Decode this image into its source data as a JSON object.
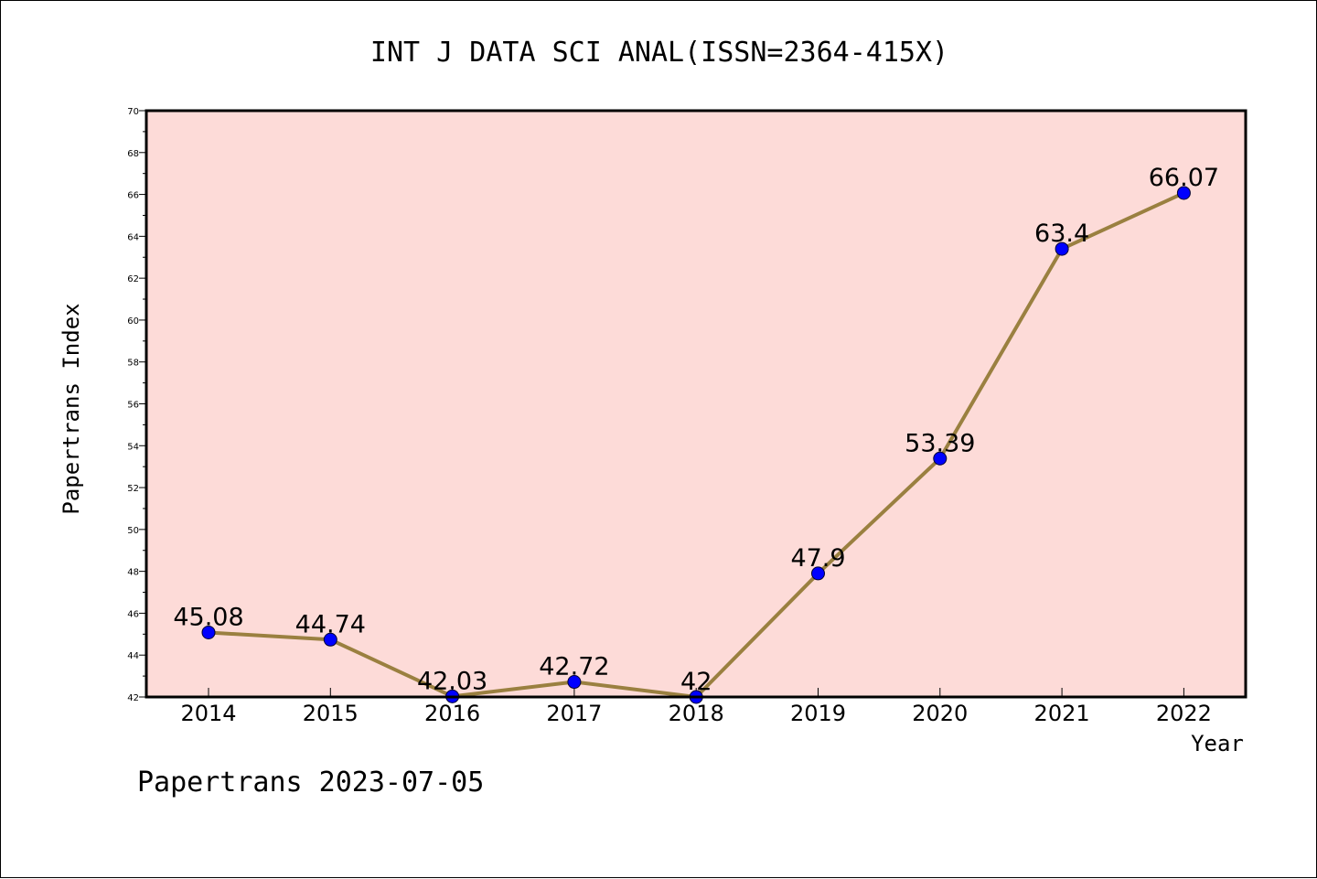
{
  "chart_data": {
    "type": "line",
    "title": "INT J DATA SCI ANAL(ISSN=2364-415X)",
    "xlabel": "Year",
    "ylabel": "Papertrans Index",
    "x": [
      "2014",
      "2015",
      "2016",
      "2017",
      "2018",
      "2019",
      "2020",
      "2021",
      "2022"
    ],
    "series": [
      {
        "values": [
          45.08,
          44.74,
          42.03,
          42.72,
          42,
          47.9,
          53.39,
          63.4,
          66.07
        ],
        "labels": [
          "45.08",
          "44.74",
          "42.03",
          "42.72",
          "42",
          "47.9",
          "53.39",
          "63.4",
          "66.07"
        ]
      }
    ],
    "ylim": [
      42,
      70
    ],
    "y_ticks": [
      "42",
      "44",
      "46",
      "48",
      "50",
      "52",
      "54",
      "56",
      "58",
      "60",
      "62",
      "64",
      "66",
      "68",
      "70"
    ],
    "grid": false,
    "colors": {
      "plot_background": "#fddbd8",
      "line": "#9a8040",
      "marker": "#0000ff"
    }
  },
  "footer": "Papertrans 2023-07-05"
}
